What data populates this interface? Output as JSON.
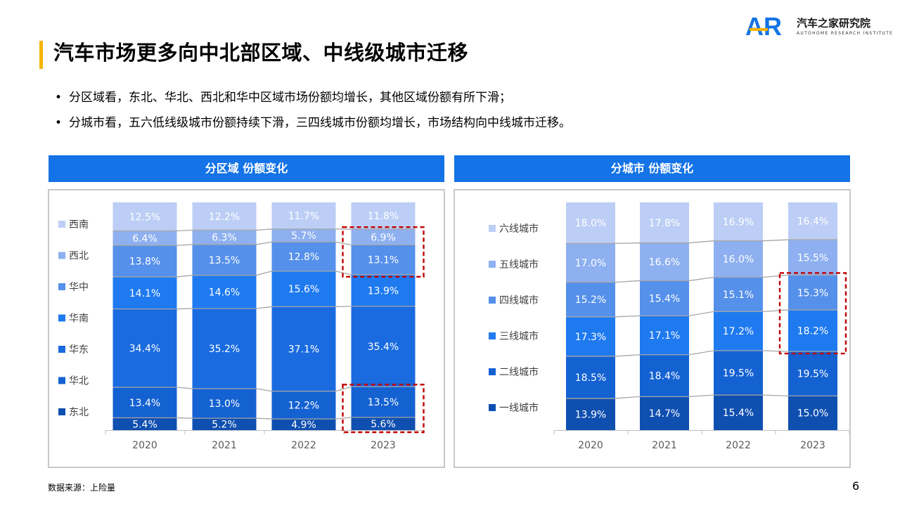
{
  "header": {
    "title": "汽车市场更多向中北部区域、中线级城市迁移",
    "logo_cn": "汽车之家研究院",
    "logo_en": "AUTOHOME RESEARCH INSTITUTE",
    "logo_mark": "AR"
  },
  "bullets": [
    "分区域看，东北、华北、西北和华中区域市场份额均增长，其他区域份额有所下滑；",
    "分城市看，五六低线级城市份额持续下滑，三四线城市份额均增长，市场结构向中线城市迁移。"
  ],
  "colors": {
    "accent_bar": "#f5b400",
    "header_bg": "#1473e6",
    "highlight_box": "#c00000",
    "connector": "#a6a6a6"
  },
  "footer": {
    "source": "数据来源：上险量",
    "page_number": "6"
  },
  "chart_data": [
    {
      "type": "bar",
      "stacked": true,
      "normalized": true,
      "panel_title": "分区域 份额变化",
      "categories": [
        "2020",
        "2021",
        "2022",
        "2023"
      ],
      "ylim": [
        0,
        100
      ],
      "legend_position": "left",
      "series": [
        {
          "name": "东北",
          "color": "#0f4fb0",
          "values": [
            5.4,
            5.2,
            4.9,
            5.6
          ],
          "labels": [
            "5.4%",
            "5.2%",
            "4.9%",
            "5.6%"
          ]
        },
        {
          "name": "华北",
          "color": "#1462d2",
          "values": [
            13.4,
            13.0,
            12.2,
            13.5
          ],
          "labels": [
            "13.4%",
            "13.0%",
            "12.2%",
            "13.5%"
          ]
        },
        {
          "name": "华东",
          "color": "#1a6be0",
          "values": [
            34.4,
            35.2,
            37.1,
            35.4
          ],
          "labels": [
            "34.4%",
            "35.2%",
            "37.1%",
            "35.4%"
          ]
        },
        {
          "name": "华南",
          "color": "#1f7af0",
          "values": [
            14.1,
            14.6,
            15.6,
            13.9
          ],
          "labels": [
            "14.1%",
            "14.6%",
            "15.6%",
            "13.9%"
          ]
        },
        {
          "name": "华中",
          "color": "#5590ea",
          "values": [
            13.8,
            13.5,
            12.8,
            13.1
          ],
          "labels": [
            "13.8%",
            "13.5%",
            "12.8%",
            "13.1%"
          ]
        },
        {
          "name": "西北",
          "color": "#8eb0f0",
          "values": [
            6.4,
            6.3,
            5.7,
            6.9
          ],
          "labels": [
            "6.4%",
            "6.3%",
            "5.7%",
            "6.9%"
          ]
        },
        {
          "name": "西南",
          "color": "#bccef5",
          "values": [
            12.5,
            12.2,
            11.7,
            11.8
          ],
          "labels": [
            "12.5%",
            "12.2%",
            "11.7%",
            "11.8%"
          ]
        }
      ],
      "legend_labels": [
        "西南",
        "西北",
        "华中",
        "华南",
        "华东",
        "华北",
        "东北"
      ],
      "highlights": [
        {
          "category": "2023",
          "series": [
            "华中",
            "西北"
          ]
        },
        {
          "category": "2023",
          "series": [
            "东北",
            "华北"
          ]
        }
      ]
    },
    {
      "type": "bar",
      "stacked": true,
      "normalized": true,
      "panel_title": "分城市 份额变化",
      "categories": [
        "2020",
        "2021",
        "2022",
        "2023"
      ],
      "ylim": [
        0,
        100
      ],
      "legend_position": "left",
      "series": [
        {
          "name": "一线城市",
          "color": "#0f4fb0",
          "values": [
            13.9,
            14.7,
            15.4,
            15.0
          ],
          "labels": [
            "13.9%",
            "14.7%",
            "15.4%",
            "15.0%"
          ]
        },
        {
          "name": "二线城市",
          "color": "#1462d2",
          "values": [
            18.5,
            18.4,
            19.5,
            19.5
          ],
          "labels": [
            "18.5%",
            "18.4%",
            "19.5%",
            "19.5%"
          ]
        },
        {
          "name": "三线城市",
          "color": "#1f7af0",
          "values": [
            17.3,
            17.1,
            17.2,
            18.2
          ],
          "labels": [
            "17.3%",
            "17.1%",
            "17.2%",
            "18.2%"
          ]
        },
        {
          "name": "四线城市",
          "color": "#5590ea",
          "values": [
            15.2,
            15.4,
            15.1,
            15.3
          ],
          "labels": [
            "15.2%",
            "15.4%",
            "15.1%",
            "15.3%"
          ]
        },
        {
          "name": "五线城市",
          "color": "#8eb0f0",
          "values": [
            17.0,
            16.6,
            16.0,
            15.5
          ],
          "labels": [
            "17.0%",
            "16.6%",
            "16.0%",
            "15.5%"
          ]
        },
        {
          "name": "六线城市",
          "color": "#bccef5",
          "values": [
            18.0,
            17.8,
            16.9,
            16.4
          ],
          "labels": [
            "18.0%",
            "17.8%",
            "16.9%",
            "16.4%"
          ]
        }
      ],
      "legend_labels": [
        "六线城市",
        "五线城市",
        "四线城市",
        "三线城市",
        "二线城市",
        "一线城市"
      ],
      "highlights": [
        {
          "category": "2023",
          "series": [
            "三线城市",
            "四线城市"
          ]
        }
      ]
    }
  ]
}
